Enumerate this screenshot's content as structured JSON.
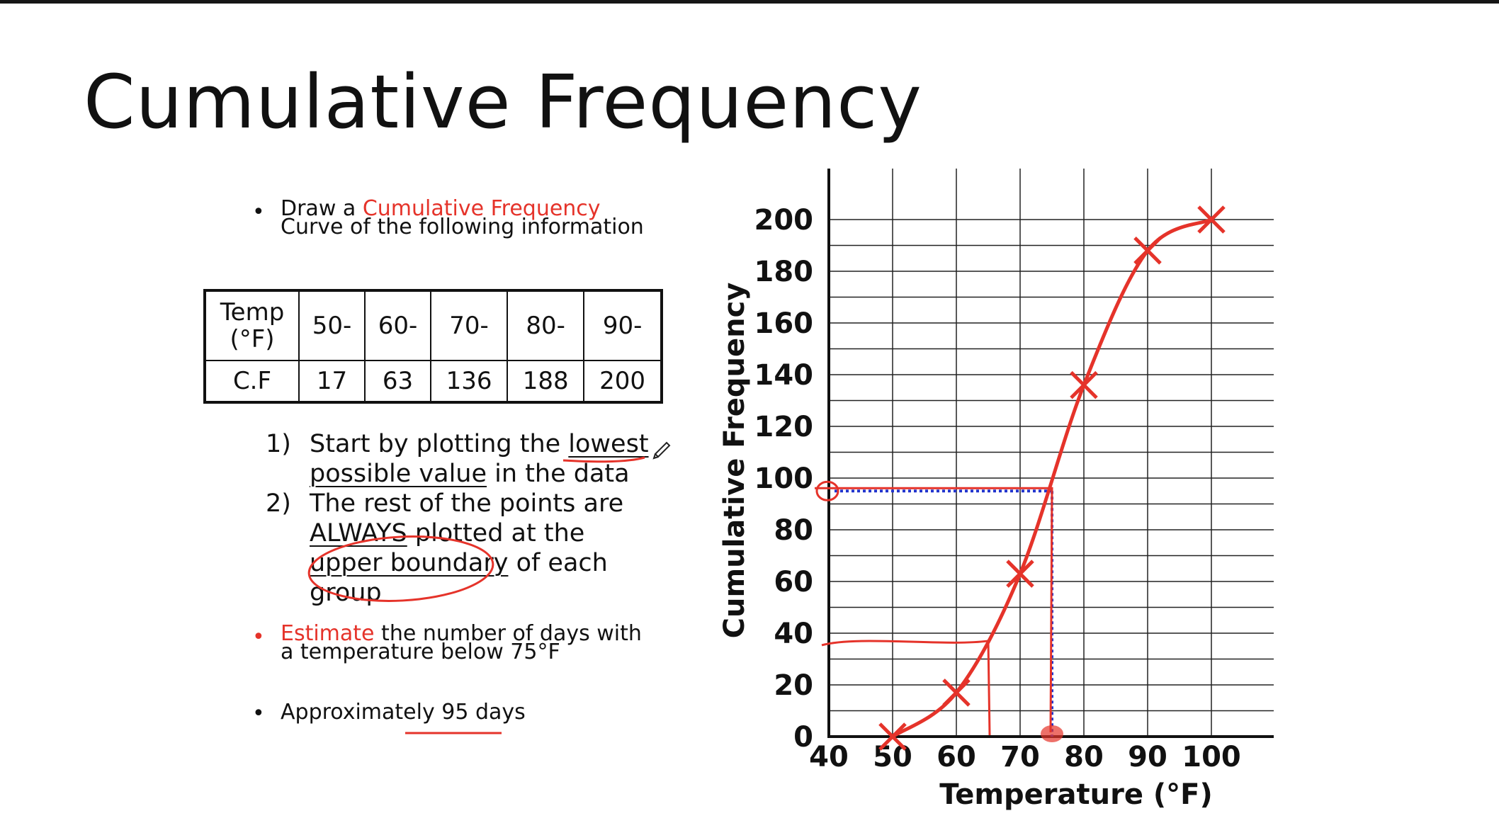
{
  "slide": {
    "title": "Cumulative Frequency"
  },
  "bullets": {
    "draw_prefix": "Draw a ",
    "draw_emph": "Cumulative Frequency",
    "draw_line2": "Curve of the following information",
    "estimate_emph": "Estimate",
    "estimate_rest": " the number of days with",
    "estimate_line2": "a temperature below 75°F",
    "answer_prefix": "Approximately ",
    "answer_value": "95 days"
  },
  "table": {
    "header_label_line1": "Temp",
    "header_label_line2": "(°F)",
    "row_label": "C.F",
    "groups": [
      "50-",
      "60-",
      "70-",
      "80-",
      "90-"
    ],
    "values": [
      "17",
      "63",
      "136",
      "188",
      "200"
    ]
  },
  "steps": [
    {
      "number": "1)",
      "line1_pre": "Start by plotting the ",
      "line1_ul": "lowest",
      "line2_ul": "possible value",
      "line2_post": " in the data"
    },
    {
      "number": "2)",
      "line1": "The rest of the points are",
      "line2_ul": "ALWAYS",
      "line2_post": " plotted at the",
      "line3_ul": "upper boundary",
      "line3_post": " of each",
      "line4": "group"
    }
  ],
  "chart_data": {
    "type": "line",
    "xlabel": "Temperature (°F)",
    "ylabel": "Cumulative Frequency",
    "xlim": [
      40,
      100
    ],
    "ylim": [
      0,
      200
    ],
    "x_ticks": [
      40,
      50,
      60,
      70,
      80,
      90,
      100
    ],
    "y_ticks": [
      0,
      20,
      40,
      60,
      80,
      100,
      120,
      140,
      160,
      180,
      200
    ],
    "grid": true,
    "points": [
      {
        "x": 50,
        "y": 0
      },
      {
        "x": 60,
        "y": 17
      },
      {
        "x": 70,
        "y": 63
      },
      {
        "x": 80,
        "y": 136
      },
      {
        "x": 90,
        "y": 188
      },
      {
        "x": 100,
        "y": 200
      }
    ],
    "estimate": {
      "x": 75,
      "y": 95
    },
    "colors": {
      "curve": "#e5332a",
      "guide": "#2233cc",
      "axis": "#111111",
      "grid": "#222222"
    }
  }
}
